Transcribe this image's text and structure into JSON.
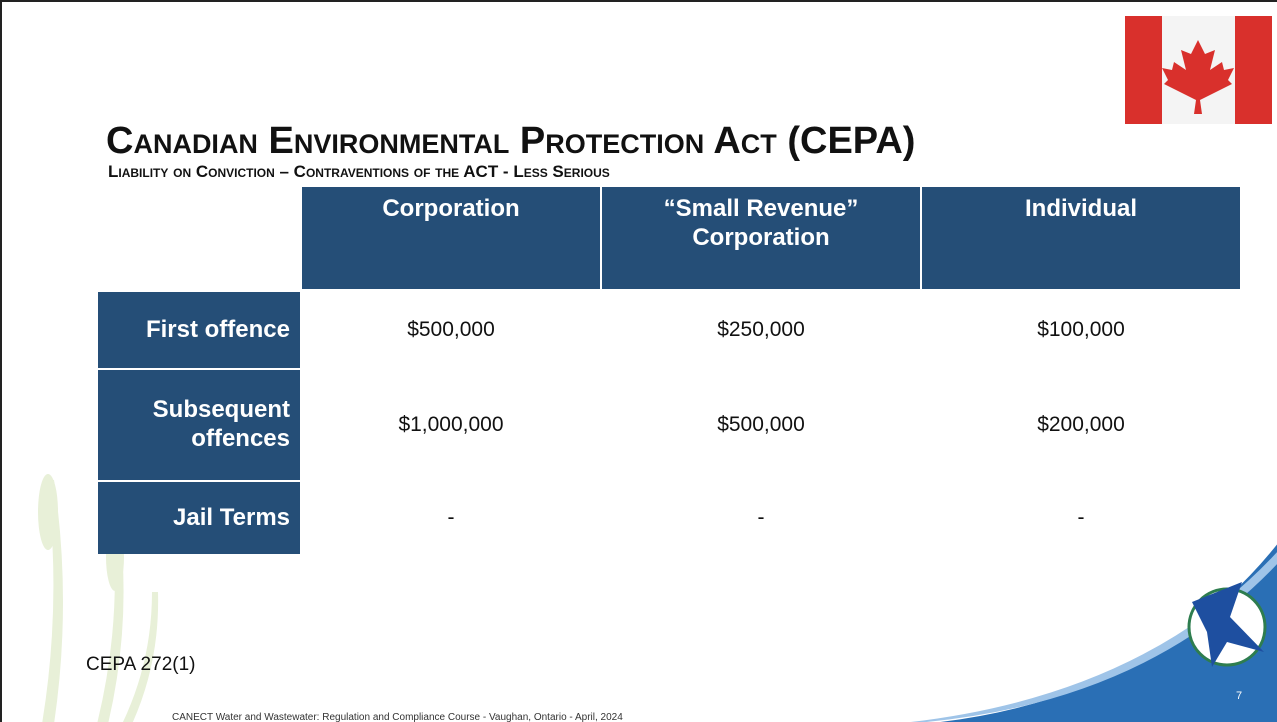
{
  "title": "Canadian Environmental Protection Act (CEPA)",
  "subtitle": "Liability on Conviction – Contraventions of the ACT - Less Serious",
  "table": {
    "columns": [
      "Corporation",
      "“Small Revenue” Corporation",
      "Individual"
    ],
    "rows": [
      {
        "label": "First offence",
        "cells": [
          "$500,000",
          "$250,000",
          "$100,000"
        ]
      },
      {
        "label": "Subsequent offences",
        "cells": [
          "$1,000,000",
          "$500,000",
          "$200,000"
        ]
      },
      {
        "label": "Jail Terms",
        "cells": [
          "-",
          "-",
          "-"
        ]
      }
    ]
  },
  "reference": "CEPA 272(1)",
  "footer": "CANECT Water and Wastewater: Regulation and Compliance Course - Vaughan, Ontario - April, 2024",
  "page_number": "7"
}
